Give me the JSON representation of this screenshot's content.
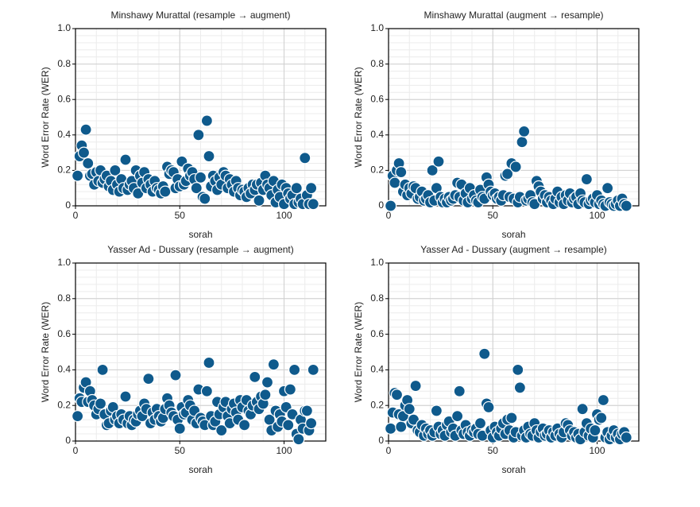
{
  "chart_data": [
    {
      "type": "scatter",
      "title": "Minshawy Murattal (resample → augment)",
      "x_label": "sorah",
      "y_label": "Word Error Rate (WER)",
      "x": [
        1,
        2,
        3,
        4,
        5,
        6,
        7,
        8,
        9,
        10,
        11,
        12,
        13,
        14,
        15,
        16,
        17,
        18,
        19,
        20,
        21,
        22,
        23,
        24,
        25,
        26,
        27,
        28,
        29,
        30,
        31,
        32,
        33,
        34,
        35,
        36,
        37,
        38,
        39,
        40,
        41,
        42,
        43,
        44,
        45,
        46,
        47,
        48,
        49,
        50,
        51,
        52,
        53,
        54,
        55,
        56,
        57,
        58,
        59,
        60,
        61,
        62,
        63,
        64,
        65,
        66,
        67,
        68,
        69,
        70,
        71,
        72,
        73,
        74,
        75,
        76,
        77,
        78,
        79,
        80,
        81,
        82,
        83,
        84,
        85,
        86,
        87,
        88,
        89,
        90,
        91,
        92,
        93,
        94,
        95,
        96,
        97,
        98,
        99,
        100,
        101,
        102,
        103,
        104,
        105,
        106,
        107,
        108,
        109,
        110,
        111,
        112,
        113,
        114
      ],
      "values": [
        0.17,
        0.28,
        0.34,
        0.3,
        0.43,
        0.24,
        0.17,
        0.18,
        0.12,
        0.19,
        0.14,
        0.2,
        0.13,
        0.15,
        0.17,
        0.11,
        0.14,
        0.09,
        0.2,
        0.12,
        0.08,
        0.15,
        0.1,
        0.26,
        0.09,
        0.12,
        0.14,
        0.1,
        0.2,
        0.07,
        0.17,
        0.13,
        0.19,
        0.1,
        0.15,
        0.12,
        0.08,
        0.14,
        0.1,
        0.09,
        0.07,
        0.11,
        0.08,
        0.22,
        0.18,
        0.2,
        0.19,
        0.1,
        0.15,
        0.11,
        0.25,
        0.12,
        0.14,
        0.21,
        0.17,
        0.19,
        0.15,
        0.1,
        0.4,
        0.16,
        0.05,
        0.04,
        0.48,
        0.28,
        0.11,
        0.17,
        0.14,
        0.09,
        0.16,
        0.12,
        0.19,
        0.17,
        0.1,
        0.15,
        0.12,
        0.08,
        0.14,
        0.1,
        0.06,
        0.09,
        0.08,
        0.05,
        0.1,
        0.07,
        0.12,
        0.09,
        0.12,
        0.03,
        0.13,
        0.09,
        0.17,
        0.12,
        0.1,
        0.06,
        0.14,
        0.02,
        0.09,
        0.05,
        0.12,
        0.01,
        0.1,
        0.07,
        0.04,
        0.06,
        0.01,
        0.1,
        0.02,
        0.04,
        0.01,
        0.27,
        0.06,
        0.01,
        0.1,
        0.01
      ],
      "color": "#0f5a8c",
      "xlim": [
        0,
        120
      ],
      "ylim": [
        0,
        1
      ],
      "xticks": [
        0,
        50,
        100
      ],
      "yticks": [
        0,
        0.2,
        0.4,
        0.6,
        0.8,
        {
          "value": 1,
          "label": "1.0"
        }
      ],
      "grid": true,
      "minor_grid": true
    },
    {
      "type": "scatter",
      "title": "Minshawy Murattal (augment → resample)",
      "x_label": "sorah",
      "y_label": "Word Error Rate (WER)",
      "x": [
        1,
        2,
        3,
        4,
        5,
        6,
        7,
        8,
        9,
        10,
        11,
        12,
        13,
        14,
        15,
        16,
        17,
        18,
        19,
        20,
        21,
        22,
        23,
        24,
        25,
        26,
        27,
        28,
        29,
        30,
        31,
        32,
        33,
        34,
        35,
        36,
        37,
        38,
        39,
        40,
        41,
        42,
        43,
        44,
        45,
        46,
        47,
        48,
        49,
        50,
        51,
        52,
        53,
        54,
        55,
        56,
        57,
        58,
        59,
        60,
        61,
        62,
        63,
        64,
        65,
        66,
        67,
        68,
        69,
        70,
        71,
        72,
        73,
        74,
        75,
        76,
        77,
        78,
        79,
        80,
        81,
        82,
        83,
        84,
        85,
        86,
        87,
        88,
        89,
        90,
        91,
        92,
        93,
        94,
        95,
        96,
        97,
        98,
        99,
        100,
        101,
        102,
        103,
        104,
        105,
        106,
        107,
        108,
        109,
        110,
        111,
        112,
        113,
        114
      ],
      "values": [
        0.0,
        0.17,
        0.13,
        0.2,
        0.24,
        0.19,
        0.08,
        0.12,
        0.06,
        0.1,
        0.07,
        0.11,
        0.1,
        0.04,
        0.05,
        0.08,
        0.03,
        0.04,
        0.06,
        0.02,
        0.2,
        0.03,
        0.1,
        0.25,
        0.05,
        0.02,
        0.04,
        0.02,
        0.05,
        0.03,
        0.04,
        0.06,
        0.13,
        0.05,
        0.12,
        0.03,
        0.07,
        0.02,
        0.1,
        0.04,
        0.06,
        0.03,
        0.02,
        0.09,
        0.05,
        0.04,
        0.16,
        0.12,
        0.08,
        0.06,
        0.07,
        0.04,
        0.05,
        0.03,
        0.06,
        0.17,
        0.18,
        0.05,
        0.24,
        0.04,
        0.22,
        0.02,
        0.05,
        0.36,
        0.42,
        0.03,
        0.04,
        0.06,
        0.02,
        0.01,
        0.14,
        0.11,
        0.08,
        0.04,
        0.06,
        0.02,
        0.05,
        0.03,
        0.01,
        0.04,
        0.08,
        0.02,
        0.05,
        0.01,
        0.06,
        0.03,
        0.07,
        0.02,
        0.04,
        0.05,
        0.01,
        0.07,
        0.03,
        0.02,
        0.15,
        0.01,
        0.03,
        0.04,
        0.02,
        0.06,
        0.01,
        0.03,
        0.01,
        0.0,
        0.1,
        0.02,
        0.01,
        0.0,
        0.01,
        0.03,
        0.0,
        0.04,
        0.01,
        0.0
      ],
      "color": "#0f5a8c",
      "xlim": [
        0,
        120
      ],
      "ylim": [
        0,
        1
      ],
      "xticks": [
        0,
        50,
        100
      ],
      "yticks": [
        0,
        0.2,
        0.4,
        0.6,
        0.8,
        {
          "value": 1,
          "label": "1.0"
        }
      ],
      "grid": true,
      "minor_grid": true
    },
    {
      "type": "scatter",
      "title": "Yasser Ad - Dussary (resample → augment)",
      "x_label": "sorah",
      "y_label": "Word Error Rate (WER)",
      "x": [
        1,
        2,
        3,
        4,
        5,
        6,
        7,
        8,
        9,
        10,
        11,
        12,
        13,
        14,
        15,
        16,
        17,
        18,
        19,
        20,
        21,
        22,
        23,
        24,
        25,
        26,
        27,
        28,
        29,
        30,
        31,
        32,
        33,
        34,
        35,
        36,
        37,
        38,
        39,
        40,
        41,
        42,
        43,
        44,
        45,
        46,
        47,
        48,
        49,
        50,
        51,
        52,
        53,
        54,
        55,
        56,
        57,
        58,
        59,
        60,
        61,
        62,
        63,
        64,
        65,
        66,
        67,
        68,
        69,
        70,
        71,
        72,
        73,
        74,
        75,
        76,
        77,
        78,
        79,
        80,
        81,
        82,
        83,
        84,
        85,
        86,
        87,
        88,
        89,
        90,
        91,
        92,
        93,
        94,
        95,
        96,
        97,
        98,
        99,
        100,
        101,
        102,
        103,
        104,
        105,
        106,
        107,
        108,
        109,
        110,
        111,
        112,
        113,
        114
      ],
      "values": [
        0.14,
        0.24,
        0.22,
        0.3,
        0.33,
        0.22,
        0.28,
        0.23,
        0.2,
        0.15,
        0.18,
        0.21,
        0.4,
        0.15,
        0.09,
        0.1,
        0.17,
        0.19,
        0.12,
        0.14,
        0.1,
        0.15,
        0.12,
        0.25,
        0.1,
        0.14,
        0.09,
        0.12,
        0.11,
        0.15,
        0.17,
        0.14,
        0.21,
        0.18,
        0.35,
        0.1,
        0.16,
        0.12,
        0.18,
        0.14,
        0.11,
        0.13,
        0.18,
        0.24,
        0.2,
        0.16,
        0.14,
        0.37,
        0.12,
        0.07,
        0.19,
        0.15,
        0.16,
        0.23,
        0.2,
        0.12,
        0.17,
        0.1,
        0.29,
        0.13,
        0.11,
        0.09,
        0.28,
        0.44,
        0.14,
        0.09,
        0.11,
        0.22,
        0.15,
        0.06,
        0.19,
        0.22,
        0.14,
        0.1,
        0.18,
        0.21,
        0.16,
        0.12,
        0.23,
        0.19,
        0.09,
        0.23,
        0.17,
        0.15,
        0.2,
        0.36,
        0.22,
        0.18,
        0.25,
        0.21,
        0.26,
        0.33,
        0.12,
        0.06,
        0.43,
        0.17,
        0.08,
        0.15,
        0.11,
        0.28,
        0.19,
        0.09,
        0.29,
        0.15,
        0.4,
        0.04,
        0.01,
        0.12,
        0.07,
        0.17,
        0.17,
        0.06,
        0.1,
        0.4
      ],
      "color": "#0f5a8c",
      "xlim": [
        0,
        120
      ],
      "ylim": [
        0,
        1
      ],
      "xticks": [
        0,
        50,
        100
      ],
      "yticks": [
        0,
        0.2,
        0.4,
        0.6,
        0.8,
        {
          "value": 1,
          "label": "1.0"
        }
      ],
      "grid": true,
      "minor_grid": true
    },
    {
      "type": "scatter",
      "title": "Yasser Ad - Dussary (augment → resample)",
      "x_label": "sorah",
      "y_label": "Word Error Rate (WER)",
      "x": [
        1,
        2,
        3,
        4,
        5,
        6,
        7,
        8,
        9,
        10,
        11,
        12,
        13,
        14,
        15,
        16,
        17,
        18,
        19,
        20,
        21,
        22,
        23,
        24,
        25,
        26,
        27,
        28,
        29,
        30,
        31,
        32,
        33,
        34,
        35,
        36,
        37,
        38,
        39,
        40,
        41,
        42,
        43,
        44,
        45,
        46,
        47,
        48,
        49,
        50,
        51,
        52,
        53,
        54,
        55,
        56,
        57,
        58,
        59,
        60,
        61,
        62,
        63,
        64,
        65,
        66,
        67,
        68,
        69,
        70,
        71,
        72,
        73,
        74,
        75,
        76,
        77,
        78,
        79,
        80,
        81,
        82,
        83,
        84,
        85,
        86,
        87,
        88,
        89,
        90,
        91,
        92,
        93,
        94,
        95,
        96,
        97,
        98,
        99,
        100,
        101,
        102,
        103,
        104,
        105,
        106,
        107,
        108,
        109,
        110,
        111,
        112,
        113,
        114
      ],
      "values": [
        0.07,
        0.16,
        0.27,
        0.26,
        0.15,
        0.08,
        0.14,
        0.2,
        0.23,
        0.18,
        0.1,
        0.12,
        0.31,
        0.06,
        0.05,
        0.09,
        0.03,
        0.07,
        0.04,
        0.06,
        0.03,
        0.05,
        0.17,
        0.08,
        0.04,
        0.06,
        0.03,
        0.09,
        0.11,
        0.05,
        0.07,
        0.03,
        0.14,
        0.28,
        0.06,
        0.04,
        0.09,
        0.05,
        0.03,
        0.06,
        0.05,
        0.07,
        0.04,
        0.1,
        0.03,
        0.49,
        0.21,
        0.19,
        0.06,
        0.02,
        0.08,
        0.05,
        0.03,
        0.07,
        0.1,
        0.04,
        0.12,
        0.06,
        0.13,
        0.02,
        0.05,
        0.4,
        0.3,
        0.03,
        0.06,
        0.02,
        0.08,
        0.04,
        0.03,
        0.1,
        0.06,
        0.02,
        0.05,
        0.07,
        0.03,
        0.04,
        0.06,
        0.02,
        0.05,
        0.03,
        0.07,
        0.04,
        0.02,
        0.05,
        0.1,
        0.09,
        0.06,
        0.03,
        0.05,
        0.02,
        0.04,
        0.01,
        0.18,
        0.05,
        0.1,
        0.03,
        0.07,
        0.02,
        0.06,
        0.15,
        0.12,
        0.13,
        0.23,
        0.02,
        0.05,
        0.01,
        0.03,
        0.06,
        0.02,
        0.04,
        0.01,
        0.04,
        0.05,
        0.02
      ],
      "color": "#0f5a8c",
      "xlim": [
        0,
        120
      ],
      "ylim": [
        0,
        1
      ],
      "xticks": [
        0,
        50,
        100
      ],
      "yticks": [
        0,
        0.2,
        0.4,
        0.6,
        0.8,
        {
          "value": 1,
          "label": "1.0"
        }
      ],
      "grid": true,
      "minor_grid": true
    }
  ]
}
